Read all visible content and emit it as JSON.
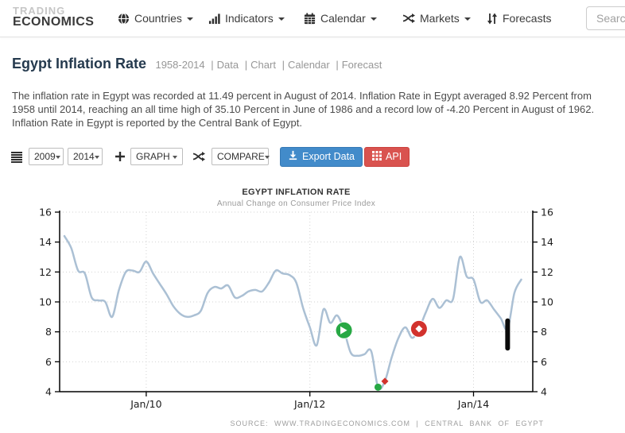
{
  "colors": {
    "accent_blue": "#428bca",
    "accent_red": "#d9534f",
    "line": "#abc0d4",
    "marker_green": "#27a844",
    "marker_red": "#d2322d",
    "axis": "#000000",
    "grid": "#d2d2d2"
  },
  "header": {
    "logo_top": "TRADING",
    "logo_bottom": "ECONOMICS",
    "nav": [
      {
        "label": "Countries",
        "icon": "globe-icon",
        "has_dropdown": true
      },
      {
        "label": "Indicators",
        "icon": "bar-chart-icon",
        "has_dropdown": true
      },
      {
        "label": "Calendar",
        "icon": "calendar-icon",
        "has_dropdown": true
      },
      {
        "label": "Markets",
        "icon": "shuffle-icon",
        "has_dropdown": true
      },
      {
        "label": "Forecasts",
        "icon": "up-down-arrows-icon",
        "has_dropdown": false
      }
    ],
    "search_placeholder": "Search"
  },
  "page": {
    "title": "Egypt Inflation Rate",
    "title_meta": {
      "range": "1958-2014",
      "sep": "|",
      "links": [
        "Data",
        "Chart",
        "Calendar",
        "Forecast"
      ]
    },
    "description": "The inflation rate in Egypt was recorded at 11.49 percent in August of 2014. Inflation Rate in Egypt averaged 8.92 Percent from 1958 until 2014, reaching an all time high of 35.10 Percent in June of 1986 and a record low of -4.20 Percent in August of 1962. Inflation Rate in Egypt is reported by the Central Bank of Egypt."
  },
  "toolbar": {
    "year_from": "2009",
    "year_to": "2014",
    "graph_label": "GRAPH",
    "compare_label": "COMPARE",
    "export_label": "Export Data",
    "api_label": "API"
  },
  "chart_data": {
    "type": "line",
    "title": "EGYPT INFLATION RATE",
    "subtitle": "Annual Change on Consumer Price Index",
    "source": "SOURCE: WWW.TRADINGECONOMICS.COM | CENTRAL BANK OF EGYPT",
    "ylabel": "",
    "xlabel": "",
    "ylim": [
      4,
      16
    ],
    "yticks": [
      4,
      6,
      8,
      10,
      12,
      14,
      16
    ],
    "grid": true,
    "legend": "none",
    "latest_value": 11.49,
    "xticks": [
      {
        "month": "2010-01",
        "label": "Jan/10"
      },
      {
        "month": "2012-01",
        "label": "Jan/12"
      },
      {
        "month": "2014-01",
        "label": "Jan/14"
      }
    ],
    "months": [
      "2009-01",
      "2009-02",
      "2009-03",
      "2009-04",
      "2009-05",
      "2009-06",
      "2009-07",
      "2009-08",
      "2009-09",
      "2009-10",
      "2009-11",
      "2009-12",
      "2010-01",
      "2010-02",
      "2010-03",
      "2010-04",
      "2010-05",
      "2010-06",
      "2010-07",
      "2010-08",
      "2010-09",
      "2010-10",
      "2010-11",
      "2010-12",
      "2011-01",
      "2011-02",
      "2011-03",
      "2011-04",
      "2011-05",
      "2011-06",
      "2011-07",
      "2011-08",
      "2011-09",
      "2011-10",
      "2011-11",
      "2011-12",
      "2012-01",
      "2012-02",
      "2012-03",
      "2012-04",
      "2012-05",
      "2012-06",
      "2012-07",
      "2012-08",
      "2012-09",
      "2012-10",
      "2012-11",
      "2012-12",
      "2013-01",
      "2013-02",
      "2013-03",
      "2013-04",
      "2013-05",
      "2013-06",
      "2013-07",
      "2013-08",
      "2013-09",
      "2013-10",
      "2013-11",
      "2013-12",
      "2014-01",
      "2014-02",
      "2014-03",
      "2014-04",
      "2014-05",
      "2014-06",
      "2014-07",
      "2014-08"
    ],
    "values": [
      14.4,
      13.6,
      12.1,
      11.9,
      10.3,
      10.1,
      10.0,
      9.0,
      10.8,
      12.0,
      12.1,
      12.0,
      12.7,
      11.9,
      11.2,
      10.5,
      9.7,
      9.2,
      9.0,
      9.1,
      9.4,
      10.6,
      11.0,
      10.9,
      11.1,
      10.3,
      10.4,
      10.7,
      10.8,
      10.7,
      11.3,
      12.1,
      11.9,
      11.8,
      11.3,
      9.6,
      8.3,
      7.1,
      9.5,
      8.6,
      9.1,
      8.1,
      6.6,
      6.4,
      6.5,
      6.7,
      4.3,
      4.7,
      6.3,
      7.6,
      8.3,
      7.6,
      8.2,
      9.3,
      10.2,
      9.6,
      10.1,
      10.2,
      13.0,
      11.7,
      11.5,
      10.0,
      10.1,
      9.5,
      8.9,
      8.2,
      10.6,
      11.49
    ],
    "annotations": [
      {
        "type": "badge-green-arrow",
        "month": "2012-06",
        "value": 8.1
      },
      {
        "type": "badge-red-diamond",
        "month": "2013-05",
        "value": 8.2
      },
      {
        "type": "dot-green",
        "month": "2012-11",
        "value": 4.3
      },
      {
        "type": "diamond-red",
        "month": "2012-12",
        "value": 4.7
      },
      {
        "type": "bar-black",
        "month": "2014-06",
        "value_high": 8.9,
        "value_low": 6.75
      }
    ]
  }
}
